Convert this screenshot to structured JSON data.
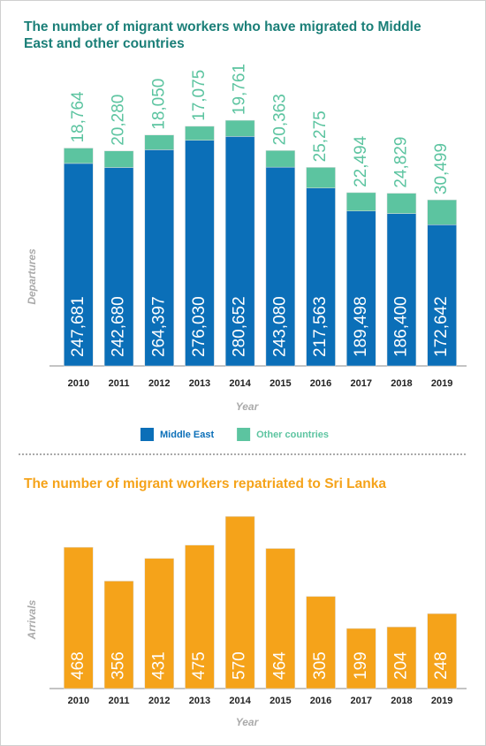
{
  "chart_data": [
    {
      "type": "bar",
      "stacked": true,
      "title": "The number of migrant workers who have migrated to Middle East and other countries",
      "y_label": "Departures",
      "x_label": "Year",
      "categories": [
        "2010",
        "2011",
        "2012",
        "2013",
        "2014",
        "2015",
        "2016",
        "2017",
        "2018",
        "2019"
      ],
      "series": [
        {
          "name": "Middle East",
          "color": "#0b6fb8",
          "values": [
            247681,
            242680,
            264397,
            276030,
            280652,
            243080,
            217563,
            189498,
            186400,
            172642
          ],
          "value_labels": [
            "247,681",
            "242,680",
            "264,397",
            "276,030",
            "280,652",
            "243,080",
            "217,563",
            "189,498",
            "186,400",
            "172,642"
          ]
        },
        {
          "name": "Other countries",
          "color": "#5cc4a0",
          "values": [
            18764,
            20280,
            18050,
            17075,
            19761,
            20363,
            25275,
            22494,
            24829,
            30499
          ],
          "value_labels": [
            "18,764",
            "20,280",
            "18,050",
            "17,075",
            "19,761",
            "20,363",
            "25,275",
            "22,494",
            "24,829",
            "30,499"
          ]
        }
      ],
      "ylim": [
        0,
        320000
      ],
      "legend": "bottom"
    },
    {
      "type": "bar",
      "title": "The number of migrant workers repatriated to Sri Lanka",
      "y_label": "Arrivals",
      "x_label": "Year",
      "categories": [
        "2010",
        "2011",
        "2012",
        "2013",
        "2014",
        "2015",
        "2016",
        "2017",
        "2018",
        "2019"
      ],
      "values": [
        468,
        356,
        431,
        475,
        570,
        464,
        305,
        199,
        204,
        248
      ],
      "color": "#f5a31a",
      "ylim": [
        0,
        650
      ]
    }
  ]
}
